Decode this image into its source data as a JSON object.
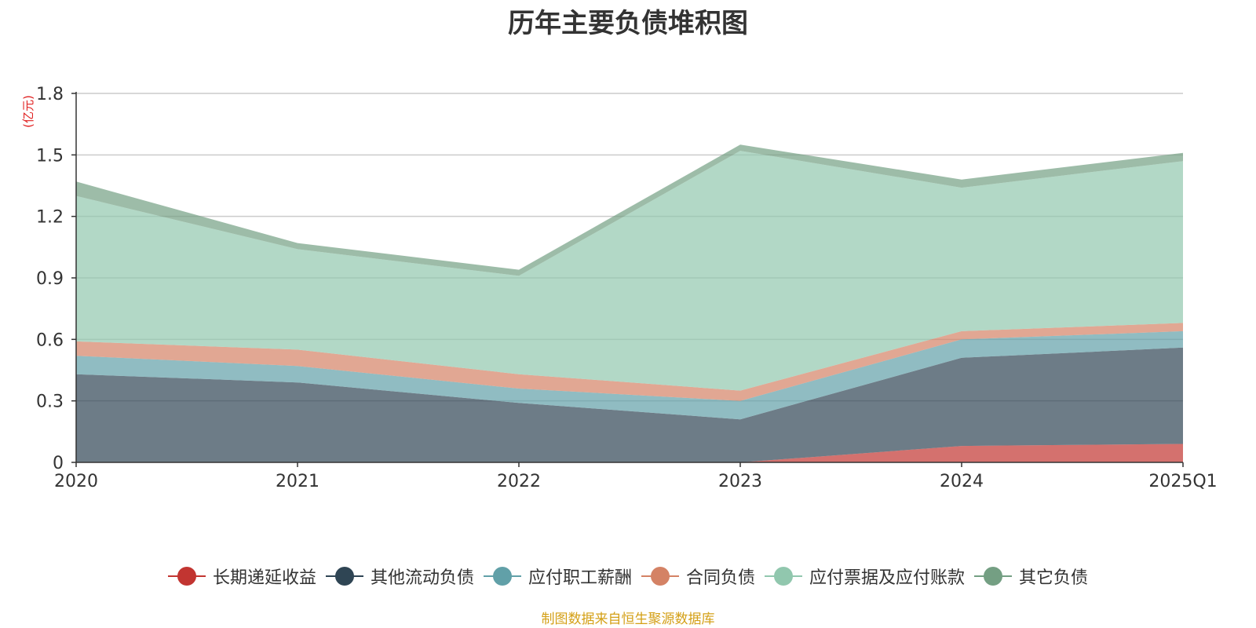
{
  "chart_data": {
    "type": "area",
    "stacked": true,
    "title": "历年主要负债堆积图",
    "y_unit": "(亿元)",
    "categories": [
      "2020",
      "2021",
      "2022",
      "2023",
      "2024",
      "2025Q1"
    ],
    "ylim": [
      0,
      1.8
    ],
    "yticks": [
      "0",
      "0.3",
      "0.6",
      "0.9",
      "1.2",
      "1.5",
      "1.8"
    ],
    "grid": true,
    "legend_position": "bottom",
    "series": [
      {
        "name": "长期递延收益",
        "color": "#c23531",
        "values": [
          0,
          0,
          0,
          0,
          0.08,
          0.09
        ]
      },
      {
        "name": "其他流动负债",
        "color": "#2f4554",
        "values": [
          0.43,
          0.39,
          0.29,
          0.21,
          0.43,
          0.47
        ]
      },
      {
        "name": "应付职工薪酬",
        "color": "#61a0a8",
        "values": [
          0.09,
          0.08,
          0.07,
          0.09,
          0.09,
          0.08
        ]
      },
      {
        "name": "合同负债",
        "color": "#d48265",
        "values": [
          0.07,
          0.08,
          0.07,
          0.05,
          0.04,
          0.04
        ]
      },
      {
        "name": "应付票据及应付账款",
        "color": "#91c7ae",
        "values": [
          0.71,
          0.49,
          0.48,
          1.17,
          0.7,
          0.79
        ]
      },
      {
        "name": "其它负债",
        "color": "#749f83",
        "values": [
          0.07,
          0.03,
          0.03,
          0.03,
          0.04,
          0.04
        ]
      }
    ]
  },
  "footer": {
    "source": "制图数据来自恒生聚源数据库"
  }
}
